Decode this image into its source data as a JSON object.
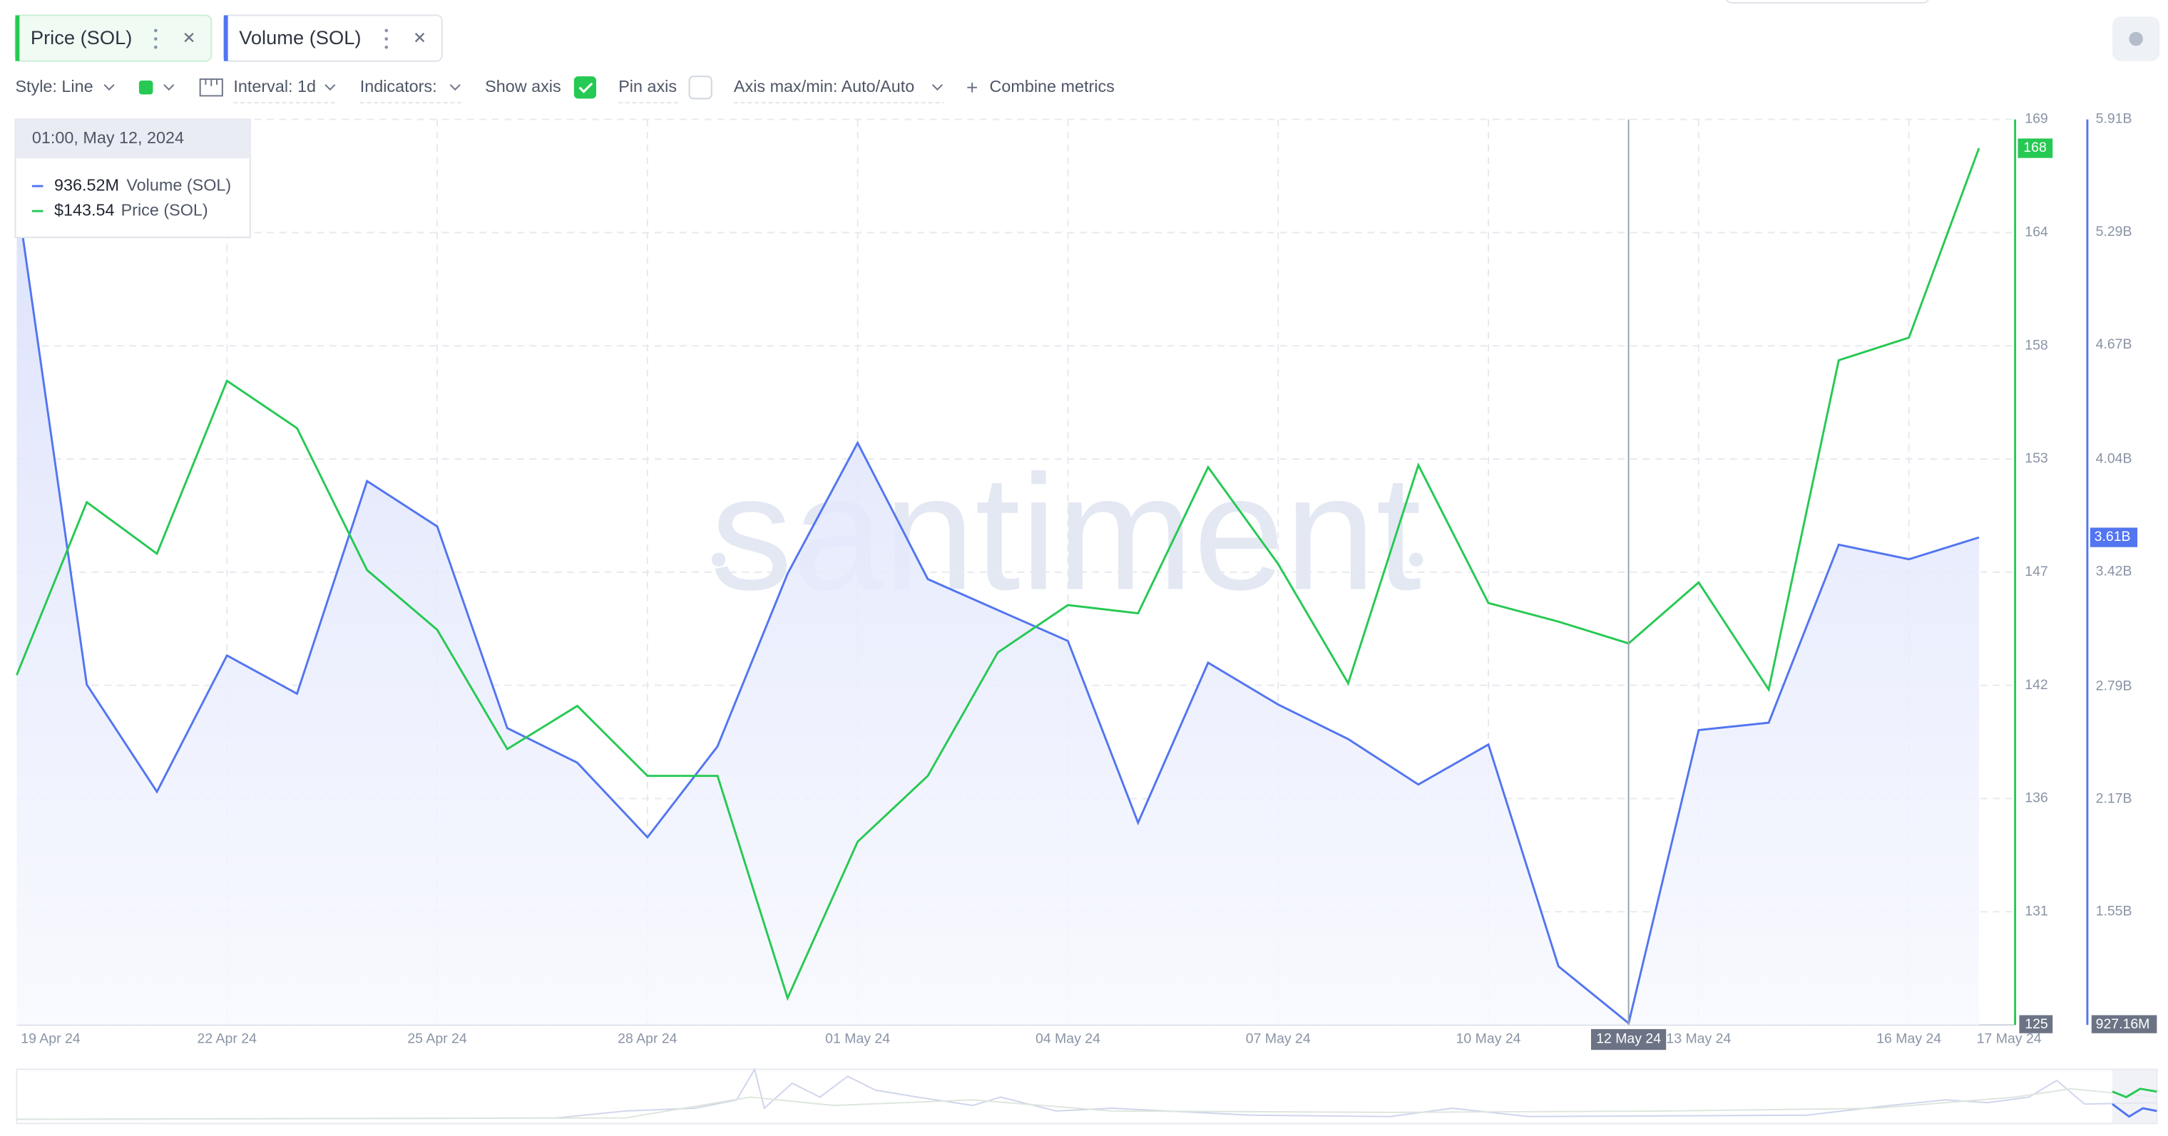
{
  "chart_data": {
    "type": "line",
    "categories": [
      "19 Apr 24",
      null,
      null,
      "22 Apr 24",
      null,
      null,
      "25 Apr 24",
      null,
      null,
      "28 Apr 24",
      null,
      null,
      "01 May 24",
      null,
      null,
      "04 May 24",
      null,
      null,
      "07 May 24",
      null,
      null,
      "10 May 24",
      null,
      "12 May 24",
      "13 May 24",
      null,
      null,
      "16 May 24",
      "17 May 24"
    ],
    "series": [
      {
        "name": "Price (SOL)",
        "color": "#26c953",
        "axis": "y",
        "badge": "168",
        "values": [
          142.0,
          150.4,
          147.9,
          156.3,
          154.0,
          147.1,
          144.2,
          138.4,
          140.5,
          137.1,
          137.1,
          126.3,
          133.9,
          137.1,
          143.1,
          145.4,
          145.0,
          152.1,
          147.4,
          141.6,
          152.2,
          145.5,
          144.6,
          143.54,
          146.5,
          141.3,
          157.3,
          158.4,
          167.6
        ]
      },
      {
        "name": "Volume (SOL)",
        "color": "#5275f0",
        "axis": "y2",
        "badge": "3.61B",
        "values": [
          5500000000,
          2800000000,
          2210000000,
          2960000000,
          2750000000,
          3920000000,
          3670000000,
          2560000000,
          2370000000,
          1960000000,
          2460000000,
          3410000000,
          4130000000,
          3380000000,
          3210000000,
          3040000000,
          2040000000,
          2920000000,
          2690000000,
          2500000000,
          2250000000,
          2470000000,
          1250000000,
          936520000,
          2550000000,
          2590000000,
          3570000000,
          3490000000,
          3610000000
        ]
      }
    ],
    "ylim": [
      125,
      169
    ],
    "yticks": [
      125,
      {
        "value": 130.5,
        "label": "131"
      },
      136,
      {
        "value": 141.5,
        "label": "142"
      },
      147,
      {
        "value": 152.5,
        "label": "153"
      },
      158,
      {
        "value": 163.5,
        "label": "164"
      },
      169
    ],
    "y2lim": [
      927160000,
      5910000000
    ],
    "y2ticks": [
      {
        "value": 927160000,
        "label": "927.16M"
      },
      {
        "value": 1550000000,
        "label": "1.55B"
      },
      {
        "value": 2170000000,
        "label": "2.17B"
      },
      {
        "value": 2790000000,
        "label": "2.79B"
      },
      {
        "value": 3420000000,
        "label": "3.42B"
      },
      {
        "value": 4040000000,
        "label": "4.04B"
      },
      {
        "value": 4670000000,
        "label": "4.67B"
      },
      {
        "value": 5290000000,
        "label": "5.29B"
      },
      {
        "value": 5910000000,
        "label": "5.91B"
      }
    ],
    "grid": true,
    "highlight_category": 23
  },
  "toolbar": {
    "style": "Style: Line",
    "interval": "Interval: 1d",
    "indicators": "Indicators:",
    "show_axis": "Show axis",
    "pin_axis": "Pin axis",
    "axis_range": "Axis max/min: Auto/Auto",
    "combine": "Combine metrics"
  },
  "tooltip": {
    "date": "01:00, May 12, 2024",
    "volume": "936.52M",
    "price": "$143.54"
  },
  "watermark": "santiment"
}
